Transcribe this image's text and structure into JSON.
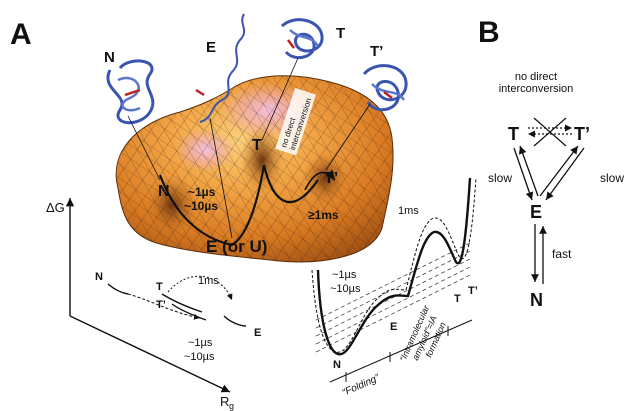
{
  "panels": {
    "a": "A",
    "b": "B"
  },
  "structures": {
    "n": "N",
    "e": "E",
    "t": "T",
    "tprime": "T’"
  },
  "landscape": {
    "well_n": "N",
    "well_t": "T",
    "well_tprime": "T’",
    "well_e": "E (or U)",
    "time_fast_1": "~1µs",
    "time_fast_2": "~10µs",
    "time_slow": "≥1ms",
    "ridge_label_1": "no direct",
    "ridge_label_2": "interconversion"
  },
  "axes": {
    "y": "ΔG",
    "x": "R",
    "x_sub": "g"
  },
  "lower_left": {
    "n": "N",
    "t": "T",
    "tprime": "T’",
    "e": "E",
    "time_top": "1ms",
    "time_b1": "~1µs",
    "time_b2": "~10µs"
  },
  "profile": {
    "time_peak": "1ms",
    "time_left_1": "~1µs",
    "time_left_2": "~10µs",
    "n": "N",
    "e": "E",
    "t": "T",
    "tprime": "T’",
    "rot_1": "“Intramolecular",
    "rot_2": "amyloid”=IA",
    "rot_3": "formation",
    "folding": "“Folding”"
  },
  "scheme": {
    "t": "T",
    "tprime": "T’",
    "e": "E",
    "n": "N",
    "no_direct_1": "no direct",
    "no_direct_2": "interconversion",
    "slow_left": "slow",
    "slow_right": "slow",
    "fast": "fast"
  },
  "colors": {
    "surface_orange": "#e8902a",
    "surface_pink": "#e8a0c0",
    "protein_blue": "#3a55b0",
    "cofactor_red": "#c02020"
  }
}
